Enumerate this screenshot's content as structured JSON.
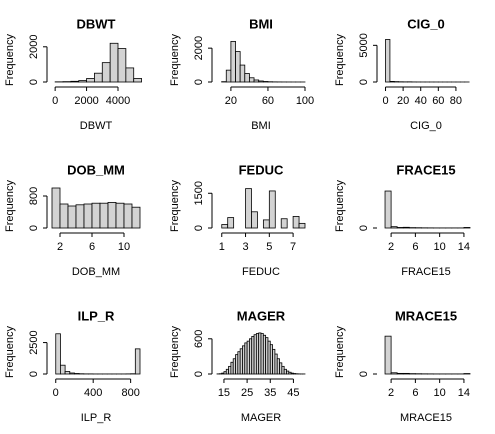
{
  "chart_data": [
    {
      "type": "histogram",
      "title": "DBWT",
      "xlabel": "DBWT",
      "ylabel": "Frequency",
      "bins": [
        0,
        500,
        1000,
        1500,
        2000,
        2500,
        3000,
        3500,
        4000,
        4500,
        5000,
        5500
      ],
      "counts": [
        10,
        20,
        40,
        80,
        200,
        500,
        1100,
        2200,
        1900,
        800,
        200
      ],
      "xlim": [
        -200,
        5400
      ],
      "ylim": [
        0,
        2500
      ],
      "xticks": [
        0,
        2000,
        4000
      ],
      "yticks": [
        0,
        2000
      ]
    },
    {
      "type": "histogram",
      "title": "BMI",
      "xlabel": "BMI",
      "ylabel": "Frequency",
      "bins": [
        10,
        15,
        20,
        25,
        30,
        35,
        40,
        45,
        50,
        55,
        60,
        65,
        70,
        75,
        80,
        85,
        90,
        95,
        100
      ],
      "counts": [
        20,
        700,
        2400,
        1800,
        1000,
        500,
        250,
        120,
        60,
        30,
        15,
        8,
        5,
        3,
        2,
        1,
        1,
        1
      ],
      "xlim": [
        5,
        100
      ],
      "ylim": [
        0,
        2600
      ],
      "xticks": [
        20,
        60,
        100
      ],
      "yticks": [
        0,
        2000
      ]
    },
    {
      "type": "histogram",
      "title": "CIG_0",
      "xlabel": "CIG_0",
      "ylabel": "Frequency",
      "bins": [
        0,
        5,
        10,
        15,
        20,
        25,
        30,
        35,
        40,
        45,
        50,
        55,
        60,
        65,
        70,
        75,
        80,
        85,
        90,
        95
      ],
      "counts": [
        5800,
        80,
        50,
        30,
        20,
        25,
        10,
        6,
        4,
        3,
        3,
        2,
        1,
        1,
        1,
        1,
        1,
        1,
        1
      ],
      "xlim": [
        -4,
        96
      ],
      "ylim": [
        0,
        6000
      ],
      "xticks": [
        0,
        20,
        40,
        60,
        80
      ],
      "yticks": [
        0,
        5000
      ]
    },
    {
      "type": "histogram",
      "title": "DOB_MM",
      "xlabel": "DOB_MM",
      "ylabel": "Frequency",
      "bins": [
        1,
        2,
        3,
        4,
        5,
        6,
        7,
        8,
        9,
        10,
        11,
        12
      ],
      "counts": [
        1000,
        600,
        550,
        580,
        600,
        620,
        620,
        640,
        620,
        600,
        520
      ],
      "xlim": [
        1,
        12
      ],
      "ylim": [
        0,
        1100
      ],
      "xticks": [
        2,
        6,
        10
      ],
      "yticks": [
        0,
        800
      ]
    },
    {
      "type": "histogram",
      "title": "FEDUC",
      "xlabel": "FEDUC",
      "ylabel": "Frequency",
      "bins": [
        1,
        1.5,
        2,
        2.5,
        3,
        3.5,
        4,
        4.5,
        5,
        5.5,
        6,
        6.5,
        7,
        7.5,
        8
      ],
      "counts": [
        150,
        450,
        0,
        0,
        1700,
        700,
        0,
        350,
        1600,
        0,
        400,
        0,
        500,
        200
      ],
      "xlim": [
        0.6,
        8
      ],
      "ylim": [
        0,
        1900
      ],
      "xticks": [
        1,
        3,
        5,
        7
      ],
      "yticks": [
        0,
        1500
      ]
    },
    {
      "type": "histogram",
      "title": "FRACE15",
      "xlabel": "FRACE15",
      "ylabel": "Frequency",
      "bins": [
        1,
        2,
        3,
        4,
        5,
        6,
        7,
        8,
        9,
        10,
        11,
        12,
        13,
        14,
        15
      ],
      "counts": [
        4200,
        150,
        60,
        80,
        40,
        30,
        20,
        15,
        10,
        10,
        10,
        10,
        10,
        60
      ],
      "xlim": [
        0.5,
        15
      ],
      "ylim": [
        0,
        5000
      ],
      "xticks": [
        2,
        6,
        10,
        14
      ],
      "yticks": [
        0
      ]
    },
    {
      "type": "histogram",
      "title": "ILP_R",
      "xlabel": "ILP_R",
      "ylabel": "Frequency",
      "bins": [
        0,
        50,
        100,
        150,
        200,
        250,
        300,
        350,
        400,
        450,
        500,
        550,
        600,
        650,
        700,
        750,
        800,
        850,
        900
      ],
      "counts": [
        3200,
        700,
        200,
        80,
        40,
        20,
        10,
        10,
        5,
        5,
        5,
        5,
        5,
        5,
        5,
        10,
        20,
        2000
      ],
      "xlim": [
        -40,
        900
      ],
      "ylim": [
        0,
        3500
      ],
      "xticks": [
        0,
        400,
        800
      ],
      "yticks": [
        0,
        2500
      ]
    },
    {
      "type": "histogram",
      "title": "MAGER",
      "xlabel": "MAGER",
      "ylabel": "Frequency",
      "bins": [
        12,
        13,
        14,
        15,
        16,
        17,
        18,
        19,
        20,
        21,
        22,
        23,
        24,
        25,
        26,
        27,
        28,
        29,
        30,
        31,
        32,
        33,
        34,
        35,
        36,
        37,
        38,
        39,
        40,
        41,
        42,
        43,
        44,
        45,
        46,
        47,
        48,
        49,
        50
      ],
      "counts": [
        2,
        5,
        15,
        40,
        80,
        130,
        200,
        260,
        330,
        380,
        430,
        480,
        530,
        560,
        600,
        640,
        670,
        690,
        700,
        690,
        660,
        620,
        560,
        500,
        420,
        340,
        260,
        190,
        130,
        80,
        50,
        30,
        15,
        8,
        4,
        2,
        1,
        1
      ],
      "xlim": [
        12,
        50
      ],
      "ylim": [
        0,
        750
      ],
      "xticks": [
        15,
        25,
        35,
        45
      ],
      "yticks": [
        0,
        600
      ]
    },
    {
      "type": "histogram",
      "title": "MRACE15",
      "xlabel": "MRACE15",
      "ylabel": "Frequency",
      "bins": [
        1,
        2,
        3,
        4,
        5,
        6,
        7,
        8,
        9,
        10,
        11,
        12,
        13,
        14,
        15
      ],
      "counts": [
        4300,
        140,
        70,
        70,
        40,
        30,
        20,
        15,
        10,
        10,
        10,
        10,
        10,
        50
      ],
      "xlim": [
        0.5,
        15
      ],
      "ylim": [
        0,
        5000
      ],
      "xticks": [
        2,
        6,
        10,
        14
      ],
      "yticks": [
        0
      ]
    }
  ]
}
